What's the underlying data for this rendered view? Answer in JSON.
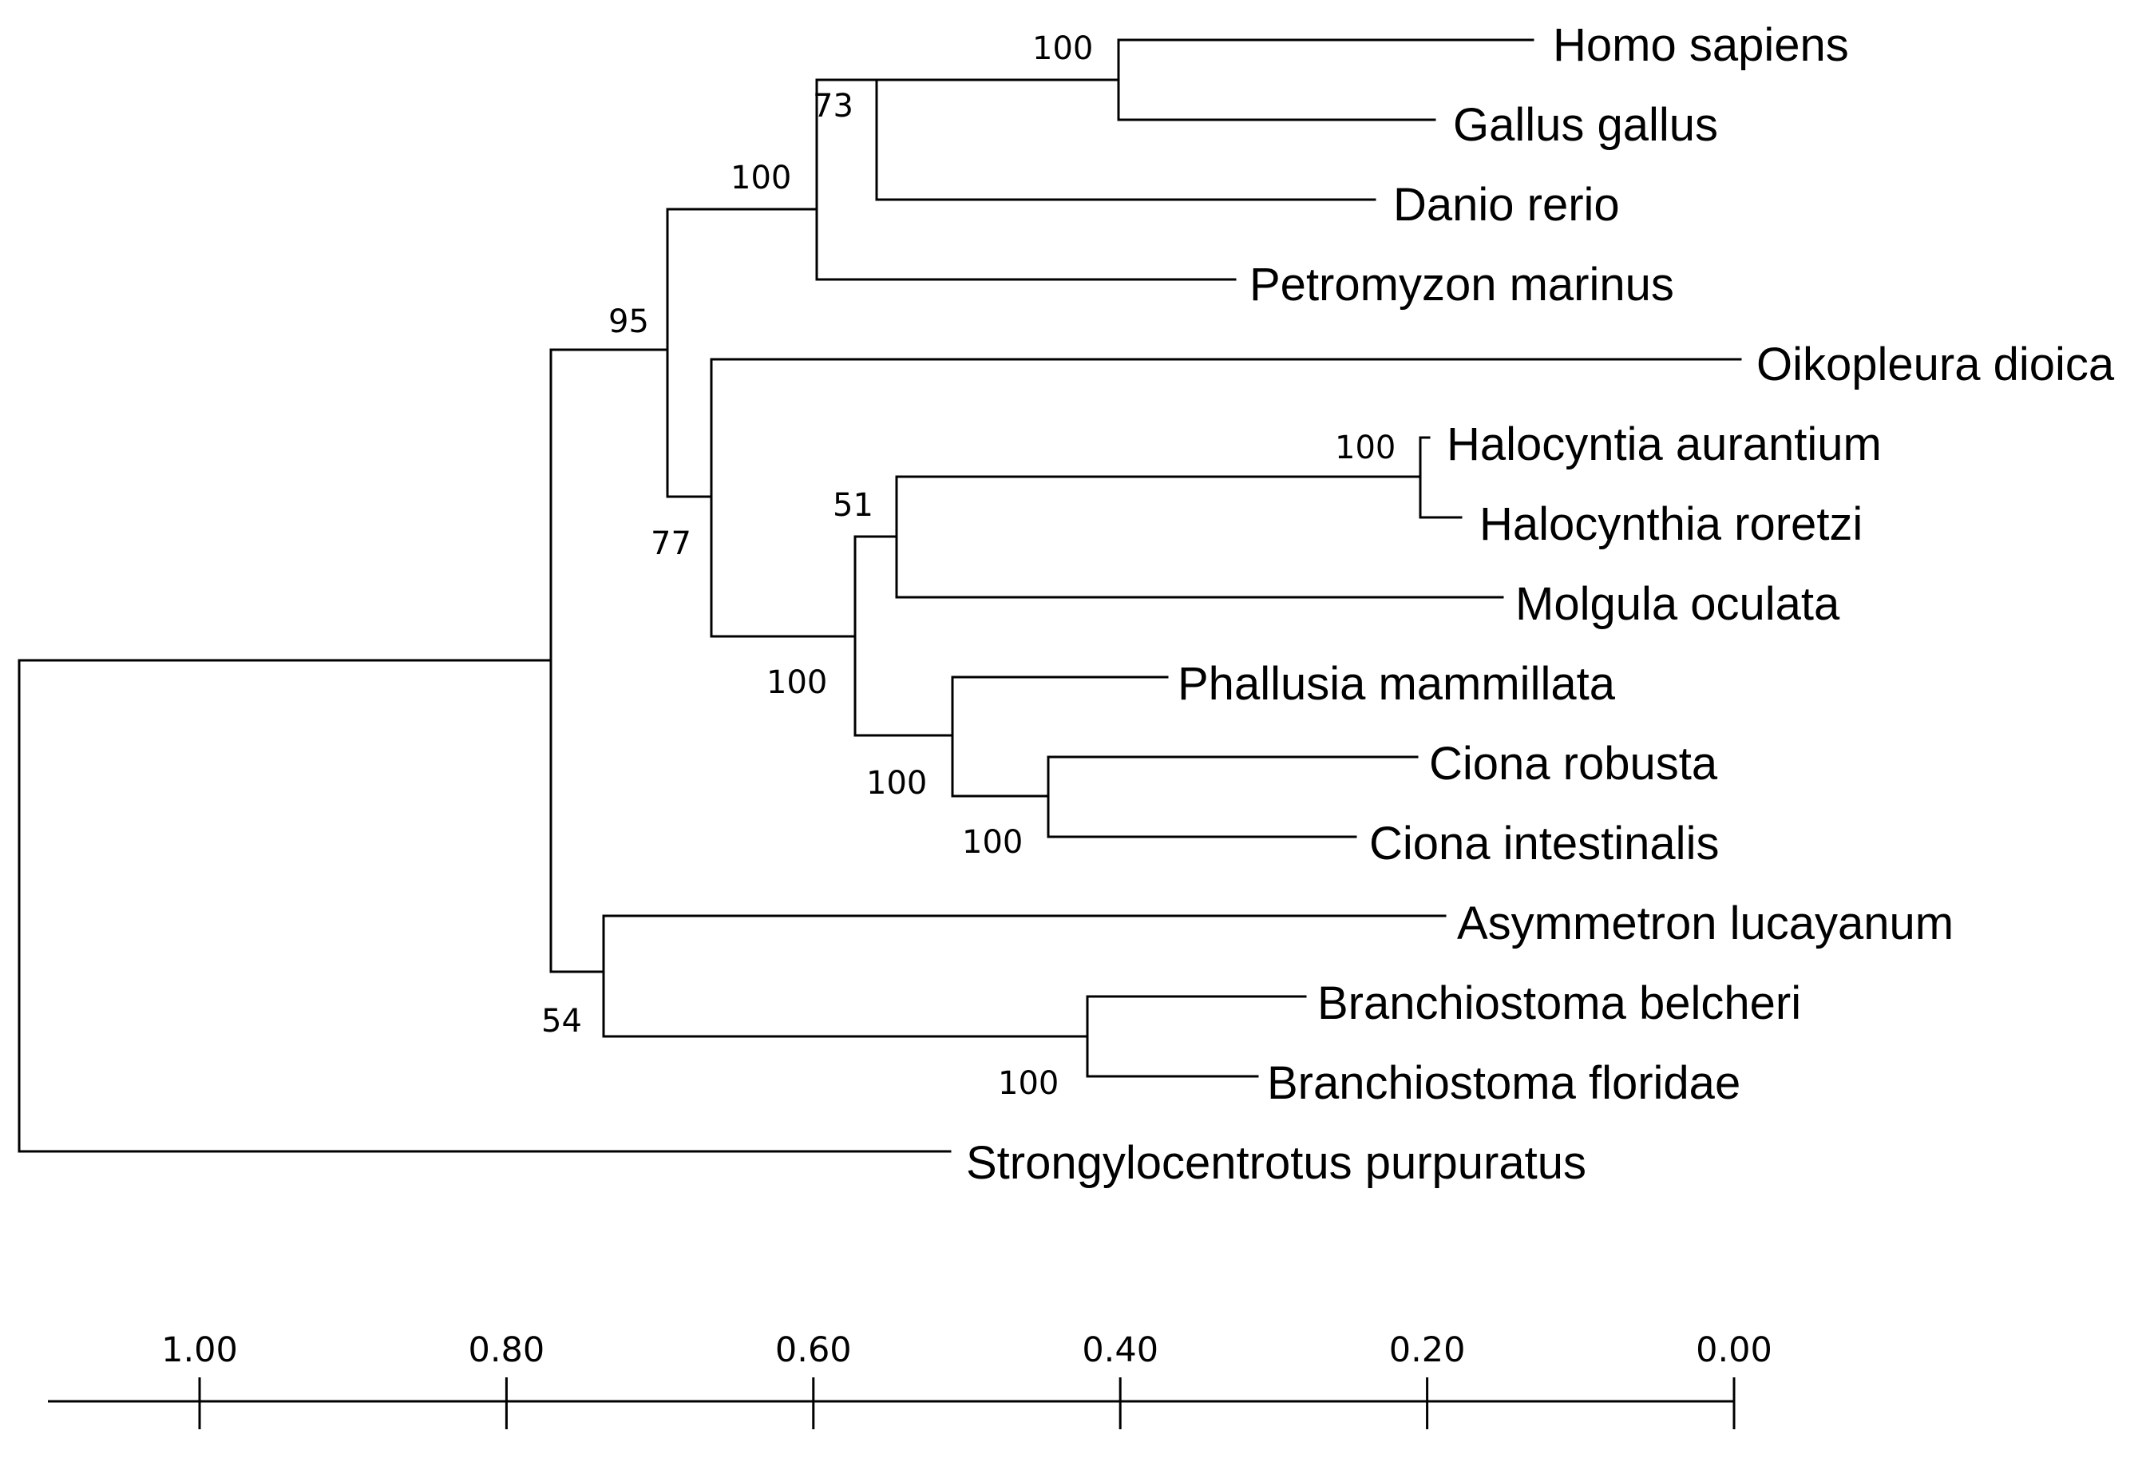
{
  "diagram": {
    "type": "phylogenetic-tree",
    "root": {
      "children": [
        {
          "support": "95",
          "children": [
            {
              "support": "100",
              "children": [
                {
                  "support": "73",
                  "children": [
                    {
                      "support": "100",
                      "children": [
                        {
                          "taxon": "Homo sapiens"
                        },
                        {
                          "taxon": "Gallus gallus"
                        }
                      ]
                    },
                    {
                      "taxon": "Danio rerio"
                    }
                  ]
                },
                {
                  "taxon": "Petromyzon marinus"
                }
              ]
            },
            {
              "support": "77",
              "children": [
                {
                  "taxon": "Oikopleura dioica"
                },
                {
                  "support": "100",
                  "children": [
                    {
                      "support": "51",
                      "children": [
                        {
                          "support": "100",
                          "children": [
                            {
                              "taxon": "Halocyntia aurantium"
                            },
                            {
                              "taxon": "Halocynthia roretzi"
                            }
                          ]
                        },
                        {
                          "taxon": "Molgula oculata"
                        }
                      ]
                    },
                    {
                      "support": "100",
                      "children": [
                        {
                          "taxon": "Phallusia mammillata"
                        },
                        {
                          "support": "100",
                          "children": [
                            {
                              "taxon": "Ciona robusta"
                            },
                            {
                              "taxon": "Ciona intestinalis"
                            }
                          ]
                        }
                      ]
                    }
                  ]
                }
              ]
            }
          ]
        },
        {
          "support": "54",
          "children": [
            {
              "taxon": "Asymmetron lucayanum"
            },
            {
              "support": "100",
              "children": [
                {
                  "taxon": "Branchiostoma belcheri"
                },
                {
                  "taxon": "Branchiostoma floridae"
                }
              ]
            }
          ]
        }
      ]
    },
    "outgroup": "Strongylocentrotus purpuratus",
    "scale": {
      "ticks": [
        1.0,
        0.8,
        0.6,
        0.4,
        0.2,
        0.0
      ],
      "labels": [
        "1.00",
        "0.80",
        "0.60",
        "0.40",
        "0.20",
        "0.00"
      ]
    }
  }
}
